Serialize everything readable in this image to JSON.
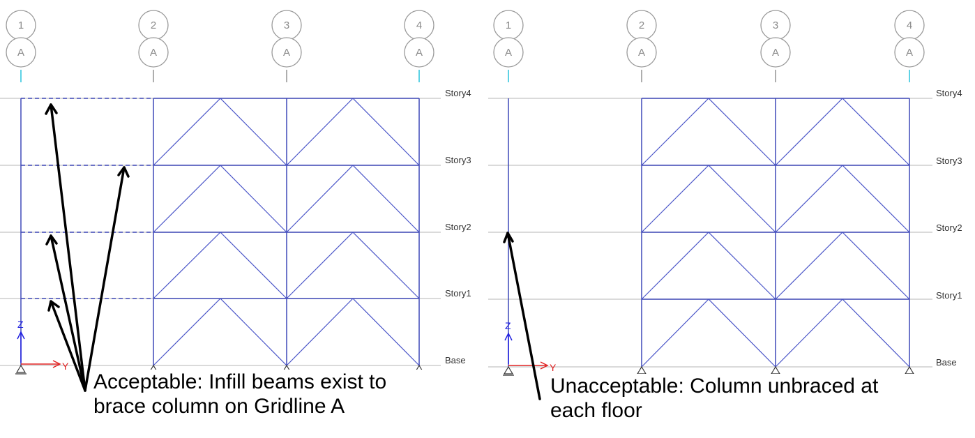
{
  "left_panel": {
    "grid_numbers": [
      "1",
      "2",
      "3",
      "4"
    ],
    "grid_letters": [
      "A",
      "A",
      "A",
      "A"
    ],
    "story_labels": [
      "Story4",
      "Story3",
      "Story2",
      "Story1",
      "Base"
    ],
    "axis_labels": {
      "z": "Z",
      "y": "Y"
    },
    "caption_lines": [
      "Acceptable: Infill beams exist to",
      "brace column on Gridline A"
    ]
  },
  "right_panel": {
    "grid_numbers": [
      "1",
      "2",
      "3",
      "4"
    ],
    "grid_letters": [
      "A",
      "A",
      "A",
      "A"
    ],
    "story_labels": [
      "Story4",
      "Story3",
      "Story2",
      "Story1",
      "Base"
    ],
    "axis_labels": {
      "z": "Z",
      "y": "Y"
    },
    "caption_lines": [
      "Unacceptable: Column unbraced at",
      "each floor"
    ]
  },
  "colors": {
    "member": "#3f48b8",
    "gridline_tick": "#29c3dc",
    "axis_y": "#e02020",
    "axis_z": "#2020e0"
  }
}
